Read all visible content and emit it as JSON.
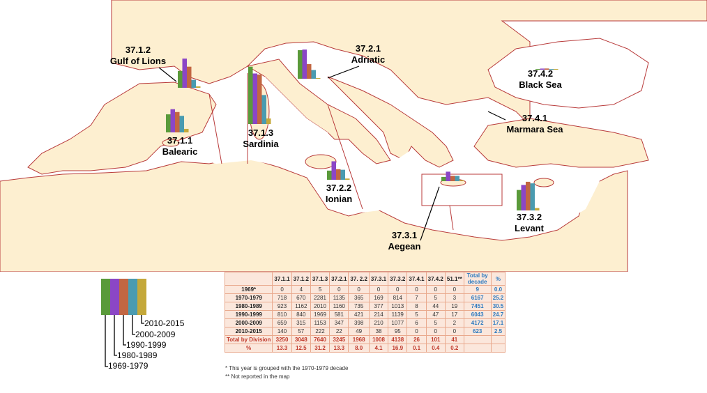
{
  "colors": {
    "sea": "#ffffff",
    "land": "#fdefd0",
    "coast": "#b83a3a",
    "bars": [
      "#5a9a3a",
      "#8b46c6",
      "#c26642",
      "#4a9bb0",
      "#c4a83a"
    ]
  },
  "areas": [
    {
      "code": "37.1.2",
      "name": "Gulf of Lions",
      "values": [
        670,
        1162,
        840,
        315,
        57
      ]
    },
    {
      "code": "37.1.1",
      "name": "Balearic",
      "values": [
        718,
        923,
        810,
        659,
        140
      ]
    },
    {
      "code": "37.1.3",
      "name": "Sardinia",
      "values": [
        2281,
        2010,
        1969,
        1153,
        222
      ]
    },
    {
      "code": "37.2.1",
      "name": "Adriatic",
      "values": [
        1135,
        1160,
        581,
        347,
        22
      ]
    },
    {
      "code": "37.2.2",
      "name": "Ionian",
      "values": [
        365,
        735,
        421,
        398,
        49
      ]
    },
    {
      "code": "37.3.1",
      "name": "Aegean",
      "values": [
        169,
        377,
        214,
        210,
        38
      ]
    },
    {
      "code": "37.3.2",
      "name": "Levant",
      "values": [
        814,
        1013,
        1139,
        1077,
        95
      ]
    },
    {
      "code": "37.4.1",
      "name": "Marmara Sea",
      "values": [
        7,
        8,
        5,
        6,
        0
      ]
    },
    {
      "code": "37.4.2",
      "name": "Black Sea",
      "values": [
        5,
        44,
        47,
        5,
        0
      ]
    }
  ],
  "legend": {
    "labels": [
      "2010-2015",
      "2000-2009",
      "1990-1999",
      "1980-1989",
      "1969-1979"
    ]
  },
  "table": {
    "headers": [
      "",
      "37.1.1",
      "37.1.2",
      "37.1.3",
      "37.2.1",
      "37. 2.2",
      "37.3.1",
      "37.3.2",
      "37.4.1",
      "37.4.2",
      "51.1**",
      "Total by decade",
      "%"
    ],
    "rows": [
      [
        "1969*",
        "0",
        "4",
        "5",
        "0",
        "0",
        "0",
        "0",
        "0",
        "0",
        "0",
        "9",
        "0.0"
      ],
      [
        "1970-1979",
        "718",
        "670",
        "2281",
        "1135",
        "365",
        "169",
        "814",
        "7",
        "5",
        "3",
        "6167",
        "25.2"
      ],
      [
        "1980-1989",
        "923",
        "1162",
        "2010",
        "1160",
        "735",
        "377",
        "1013",
        "8",
        "44",
        "19",
        "7451",
        "30.5"
      ],
      [
        "1990-1999",
        "810",
        "840",
        "1969",
        "581",
        "421",
        "214",
        "1139",
        "5",
        "47",
        "17",
        "6043",
        "24.7"
      ],
      [
        "2000-2009",
        "659",
        "315",
        "1153",
        "347",
        "398",
        "210",
        "1077",
        "6",
        "5",
        "2",
        "4172",
        "17.1"
      ],
      [
        "2010-2015",
        "140",
        "57",
        "222",
        "22",
        "49",
        "38",
        "95",
        "0",
        "0",
        "0",
        "623",
        "2.5"
      ]
    ],
    "total_row": [
      "Total by Division",
      "3250",
      "3048",
      "7640",
      "3245",
      "1968",
      "1008",
      "4138",
      "26",
      "101",
      "41",
      "",
      ""
    ],
    "pct_row": [
      "%",
      "13.3",
      "12.5",
      "31.2",
      "13.3",
      "8.0",
      "4.1",
      "16.9",
      "0.1",
      "0.4",
      "0.2",
      "",
      ""
    ],
    "notes": [
      "* This year is grouped with the 1970-1979 decade",
      "** Not reported in the map"
    ]
  }
}
